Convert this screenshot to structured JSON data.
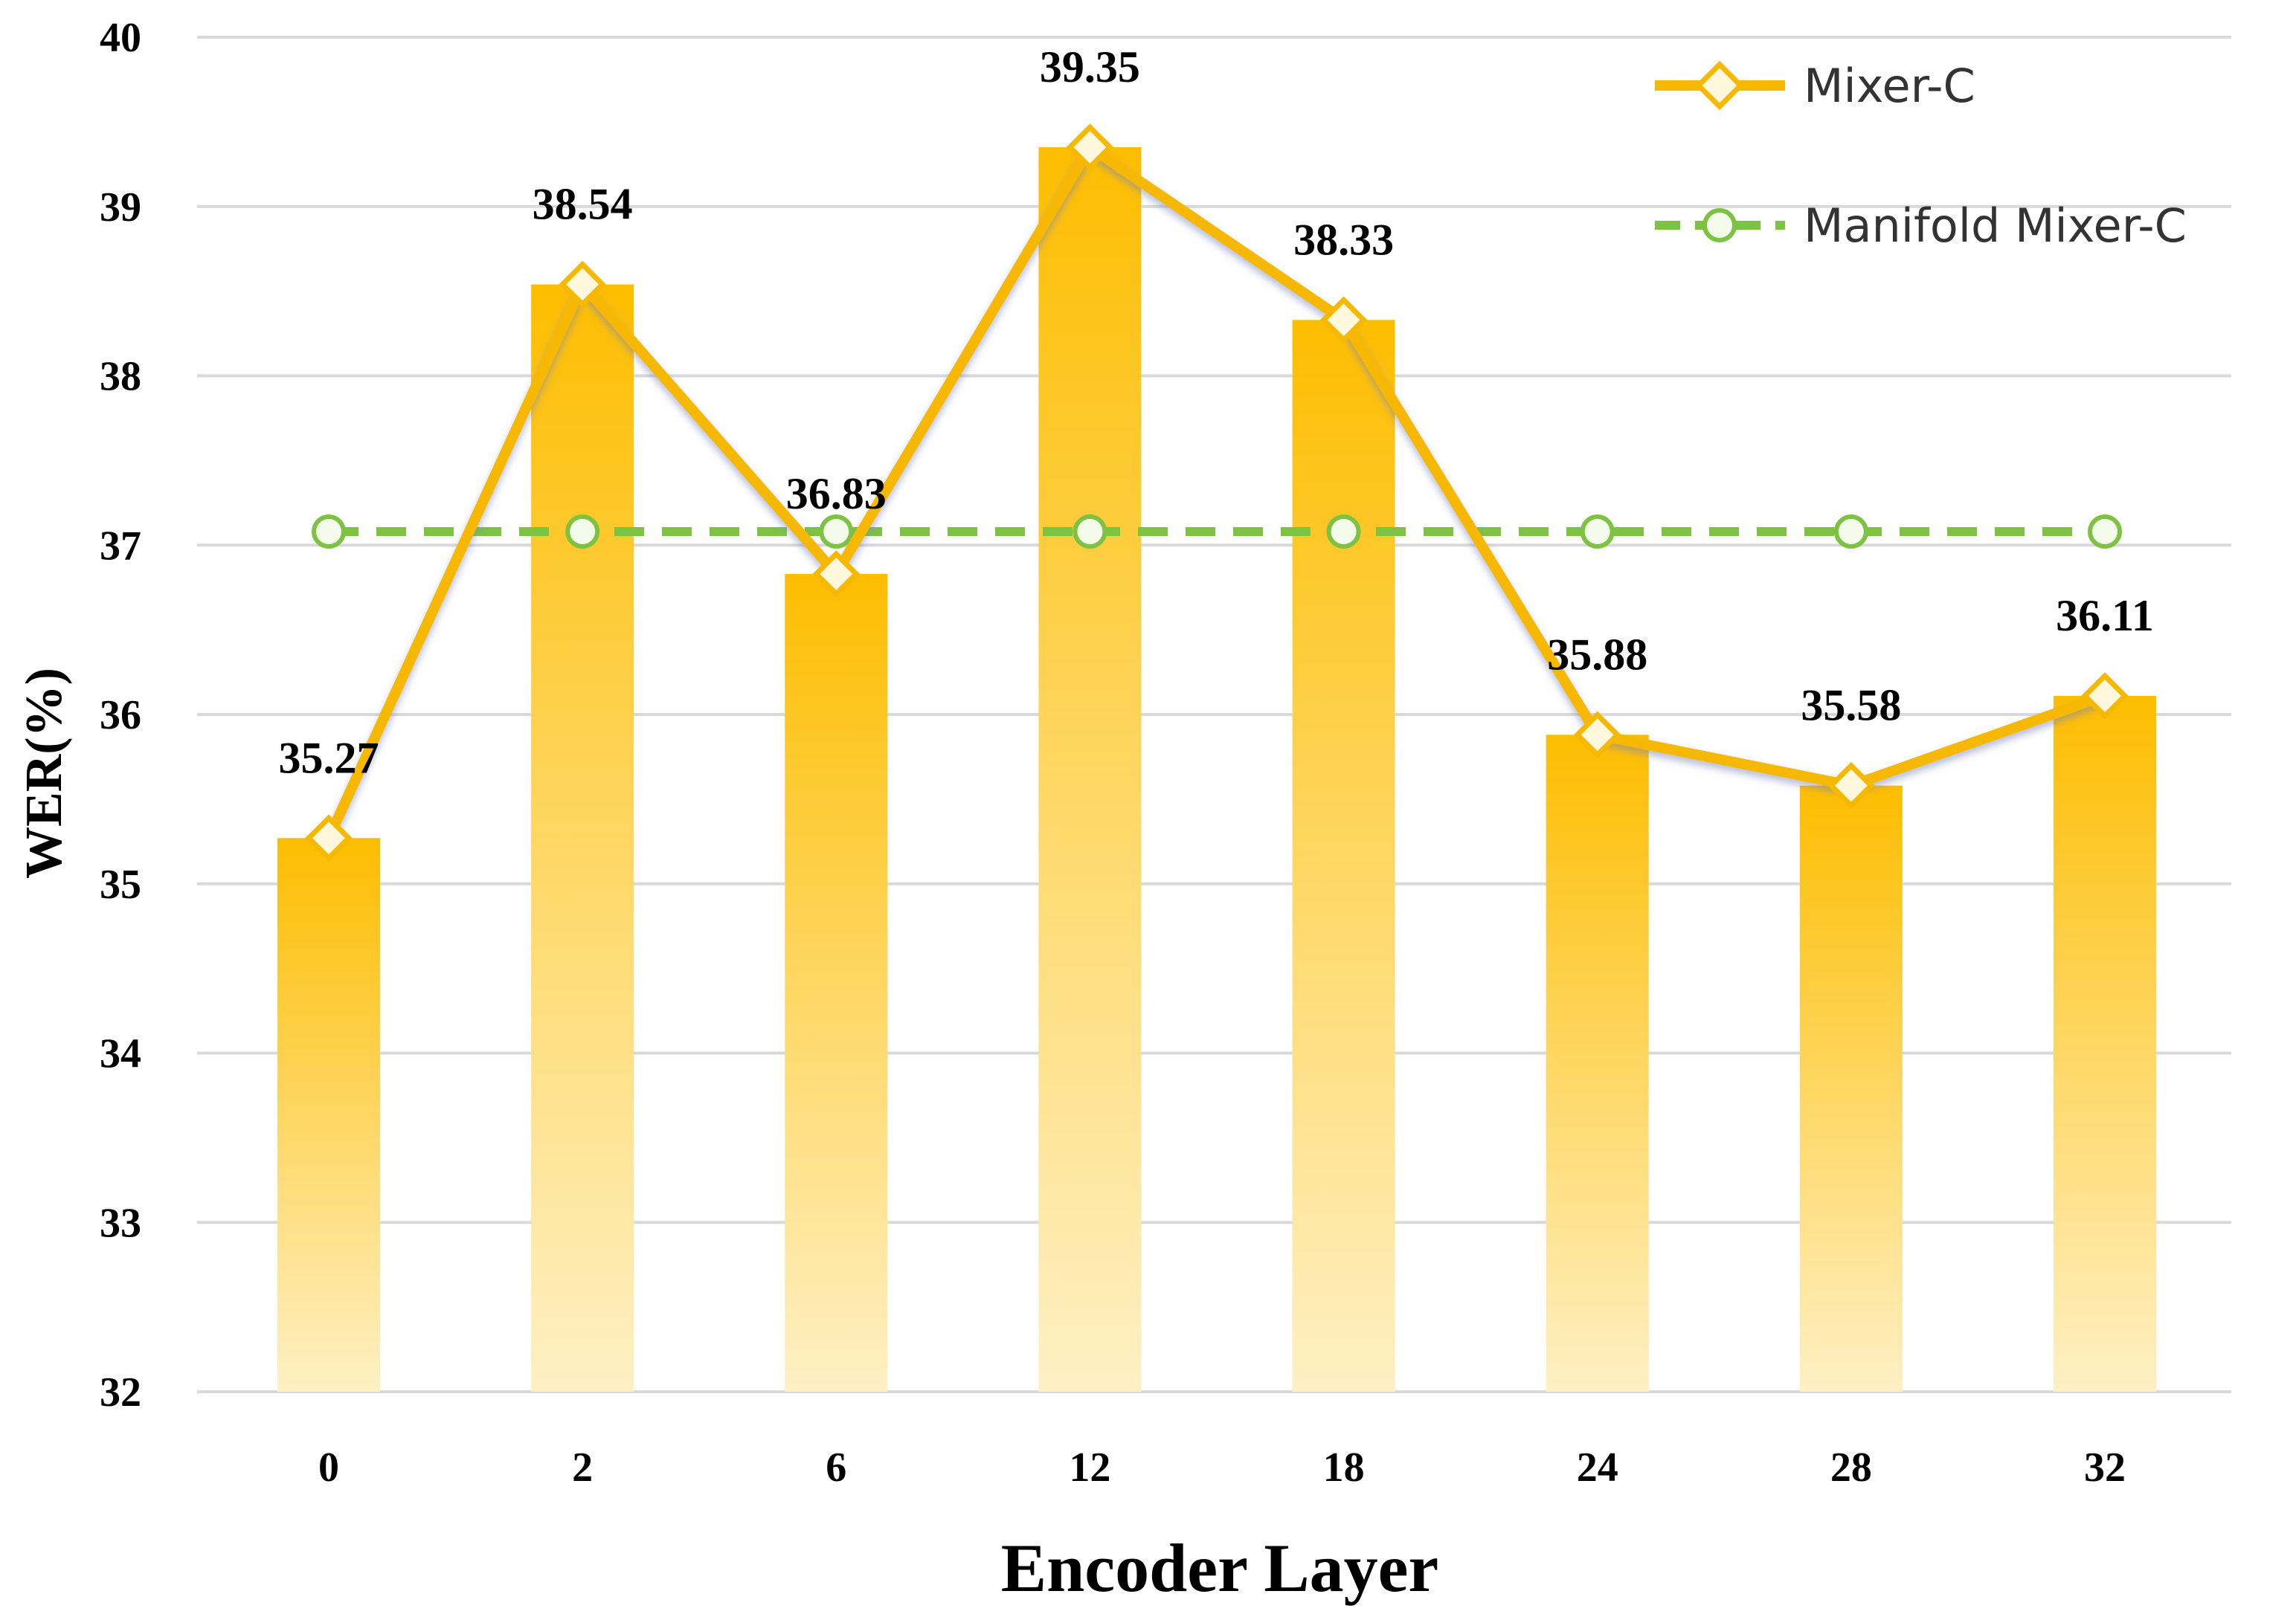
{
  "chart_data": {
    "type": "bar",
    "xlabel": "Encoder Layer",
    "ylabel": "WER(%)",
    "ylim": [
      32,
      40
    ],
    "yticks": [
      "32",
      "33",
      "34",
      "35",
      "36",
      "37",
      "38",
      "39",
      "40"
    ],
    "categories": [
      "0",
      "2",
      "6",
      "12",
      "18",
      "24",
      "28",
      "32"
    ],
    "grid": true,
    "legend_position": "top-right",
    "series": [
      {
        "name": "Mixer-C",
        "kind": "bar+line",
        "values": [
          35.27,
          38.54,
          36.83,
          39.35,
          38.33,
          35.88,
          35.58,
          36.11
        ],
        "labels": [
          "35.27",
          "38.54",
          "36.83",
          "39.35",
          "38.33",
          "35.88",
          "35.58",
          "36.11"
        ]
      },
      {
        "name": "Manifold Mixer-C",
        "kind": "dashed-line",
        "values": [
          37.08,
          37.08,
          37.08,
          37.08,
          37.08,
          37.08,
          37.08,
          37.08
        ]
      }
    ]
  },
  "colors": {
    "bar_top": "#FDBD00",
    "bar_bottom": "#FEF0C4",
    "line": "#F6B800",
    "marker_fill": "#FFF8DC",
    "dashed": "#7DC242",
    "grid": "#D9D9D9"
  }
}
